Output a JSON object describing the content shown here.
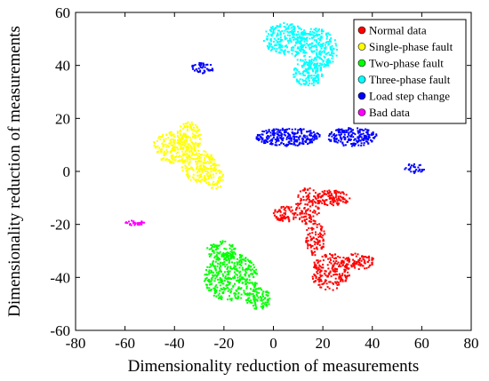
{
  "chart_data": {
    "type": "scatter",
    "xlabel": "Dimensionality reduction of measurements",
    "ylabel": "Dimensionality reduction of measurements",
    "xlim": [
      -80,
      80
    ],
    "ylim": [
      -60,
      60
    ],
    "xticks": [
      -80,
      -60,
      -40,
      -20,
      0,
      20,
      40,
      60,
      80
    ],
    "yticks": [
      -60,
      -40,
      -20,
      0,
      20,
      40,
      60
    ],
    "legend_position": "top-right",
    "grid": false,
    "series": [
      {
        "name": "Normal data",
        "color": "#ff0000",
        "clusters": [
          {
            "cx": 5,
            "cy": -16,
            "rx": 5,
            "ry": 3,
            "n": 70
          },
          {
            "cx": 14,
            "cy": -13,
            "rx": 5,
            "ry": 7,
            "n": 120
          },
          {
            "cx": 24,
            "cy": -10,
            "rx": 7,
            "ry": 3,
            "n": 110
          },
          {
            "cx": 17,
            "cy": -25,
            "rx": 4,
            "ry": 7,
            "n": 90
          },
          {
            "cx": 23,
            "cy": -38,
            "rx": 8,
            "ry": 7,
            "n": 200
          },
          {
            "cx": 34,
            "cy": -34,
            "rx": 7,
            "ry": 3,
            "n": 90
          }
        ]
      },
      {
        "name": "Single-phase fault",
        "color": "#ffff00",
        "clusters": [
          {
            "cx": -40,
            "cy": 9,
            "rx": 9,
            "ry": 6,
            "n": 200
          },
          {
            "cx": -34,
            "cy": 13,
            "rx": 5,
            "ry": 6,
            "n": 110
          },
          {
            "cx": -30,
            "cy": 2,
            "rx": 7,
            "ry": 6,
            "n": 180
          },
          {
            "cx": -24,
            "cy": -2,
            "rx": 4,
            "ry": 5,
            "n": 60
          }
        ]
      },
      {
        "name": "Two-phase fault",
        "color": "#00ff00",
        "clusters": [
          {
            "cx": -21,
            "cy": -30,
            "rx": 6,
            "ry": 4,
            "n": 90
          },
          {
            "cx": -17,
            "cy": -40,
            "rx": 11,
            "ry": 9,
            "n": 380
          },
          {
            "cx": -6,
            "cy": -48,
            "rx": 5,
            "ry": 4,
            "n": 90
          }
        ]
      },
      {
        "name": "Three-phase fault",
        "color": "#00ffff",
        "clusters": [
          {
            "cx": 5,
            "cy": 50,
            "rx": 9,
            "ry": 6,
            "n": 230
          },
          {
            "cx": 17,
            "cy": 46,
            "rx": 9,
            "ry": 8,
            "n": 260
          },
          {
            "cx": 14,
            "cy": 37,
            "rx": 6,
            "ry": 5,
            "n": 130
          }
        ]
      },
      {
        "name": "Load step change",
        "color": "#0000ff",
        "clusters": [
          {
            "cx": 6,
            "cy": 13,
            "rx": 13,
            "ry": 3.5,
            "n": 260
          },
          {
            "cx": 32,
            "cy": 13,
            "rx": 10,
            "ry": 3.5,
            "n": 200
          },
          {
            "cx": -29,
            "cy": 39,
            "rx": 5,
            "ry": 2,
            "n": 45
          },
          {
            "cx": 57,
            "cy": 1,
            "rx": 4,
            "ry": 2,
            "n": 30
          }
        ]
      },
      {
        "name": "Bad data",
        "color": "#ff00ff",
        "clusters": [
          {
            "cx": -56,
            "cy": -19.5,
            "rx": 4,
            "ry": 1,
            "n": 30
          }
        ]
      }
    ]
  }
}
